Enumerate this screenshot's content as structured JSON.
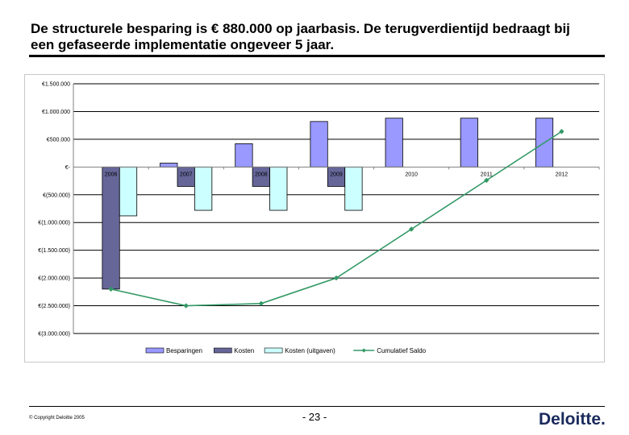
{
  "slide": {
    "title_line1": "De structurele besparing is € 880.000 op jaarbasis. De terugverdientijd bedraagt bij",
    "title_line2": "een gefaseerde implementatie ongeveer 5 jaar."
  },
  "footer": {
    "copyright": "© Copyright Deloitte 2005",
    "page_number": "- 23 -",
    "logo": "Deloitte",
    "logo_dot": "."
  },
  "colors": {
    "besparingen": "#9999ff",
    "kosten": "#666699",
    "kosten_uitgaven": "#ccffff",
    "cumulatief": "#339966",
    "grid": "#000000",
    "logo": "#1a2a5c"
  },
  "chart_data": {
    "type": "bar",
    "title": "",
    "xlabel": "",
    "ylabel": "",
    "categories": [
      "2006",
      "2007",
      "2008",
      "2009",
      "2010",
      "2011",
      "2012"
    ],
    "ylim": [
      -3000000,
      1500000
    ],
    "y_ticks": [
      1500000,
      1000000,
      500000,
      0,
      -500000,
      -1000000,
      -1500000,
      -2000000,
      -2500000,
      -3000000
    ],
    "y_tick_labels": [
      "€1.500.000",
      "€1.000.000",
      "€500.000",
      "€-",
      "€(500.000)",
      "€(1.000.000)",
      "€(1.500.000)",
      "€(2.000.000)",
      "€(2.500.000)",
      "€(3.000.000)"
    ],
    "grid": "horizontal major gridlines",
    "legend_position": "bottom",
    "series": [
      {
        "name": "Besparingen",
        "kind": "bar",
        "color": "#9999ff",
        "values": [
          0,
          70000,
          420000,
          820000,
          880000,
          880000,
          880000
        ]
      },
      {
        "name": "Kosten",
        "kind": "bar",
        "color": "#666699",
        "values": [
          -2200000,
          -350000,
          -350000,
          -350000,
          0,
          0,
          0
        ]
      },
      {
        "name": "Kosten (uitgaven)",
        "kind": "bar",
        "color": "#ccffff",
        "values": [
          -880000,
          -780000,
          -780000,
          -780000,
          0,
          0,
          0
        ]
      },
      {
        "name": "Cumulatief Saldo",
        "kind": "line",
        "color": "#339966",
        "values": [
          -2200000,
          -2500000,
          -2460000,
          -2000000,
          -1120000,
          -240000,
          640000
        ]
      }
    ]
  }
}
